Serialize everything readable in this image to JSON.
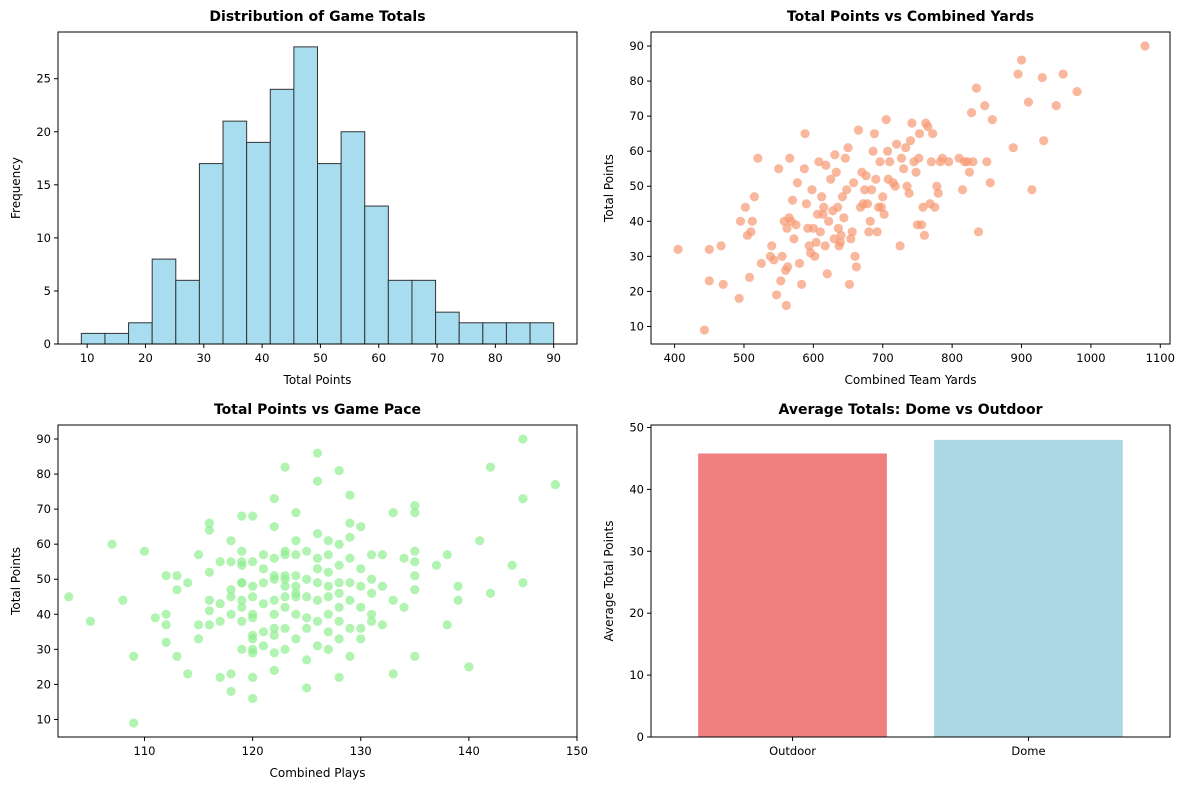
{
  "chart_data": [
    {
      "type": "bar",
      "subtype": "histogram",
      "title": "Distribution of Game Totals",
      "xlabel": "Total Points",
      "ylabel": "Frequency",
      "xlim": [
        5,
        94
      ],
      "ylim": [
        0,
        29.4
      ],
      "xticks": [
        10,
        20,
        30,
        40,
        50,
        60,
        70,
        80,
        90
      ],
      "yticks": [
        0,
        5,
        10,
        15,
        20,
        25
      ],
      "bin_edges": [
        9,
        13.05,
        17.1,
        21.15,
        25.2,
        29.25,
        33.3,
        37.35,
        41.4,
        45.45,
        49.5,
        53.55,
        57.6,
        61.65,
        65.7,
        69.75,
        73.8,
        77.85,
        81.9,
        85.95,
        90
      ],
      "values": [
        1,
        1,
        2,
        8,
        6,
        17,
        21,
        19,
        24,
        28,
        17,
        20,
        13,
        6,
        6,
        3,
        2,
        2,
        2,
        2
      ],
      "color": "#a8dcef",
      "edge_color": "#333333"
    },
    {
      "type": "scatter",
      "title": "Total Points vs Combined Yards",
      "xlabel": "Combined Team Yards",
      "ylabel": "Total Points",
      "xlim": [
        366,
        1114
      ],
      "ylim": [
        5,
        94
      ],
      "xticks": [
        400,
        500,
        600,
        700,
        800,
        900,
        1000,
        1100
      ],
      "yticks": [
        10,
        20,
        30,
        40,
        50,
        60,
        70,
        80,
        90
      ],
      "color": "#f79a74",
      "points": [
        [
          405,
          32
        ],
        [
          443,
          9
        ],
        [
          450,
          23
        ],
        [
          450,
          32
        ],
        [
          467,
          33
        ],
        [
          470,
          22
        ],
        [
          493,
          18
        ],
        [
          495,
          40
        ],
        [
          502,
          44
        ],
        [
          505,
          36
        ],
        [
          508,
          24
        ],
        [
          510,
          37
        ],
        [
          512,
          40
        ],
        [
          515,
          47
        ],
        [
          520,
          58
        ],
        [
          525,
          28
        ],
        [
          538,
          30
        ],
        [
          540,
          33
        ],
        [
          543,
          29
        ],
        [
          547,
          19
        ],
        [
          550,
          55
        ],
        [
          553,
          23
        ],
        [
          555,
          30
        ],
        [
          558,
          40
        ],
        [
          560,
          26
        ],
        [
          561,
          16
        ],
        [
          562,
          38
        ],
        [
          563,
          27
        ],
        [
          565,
          41
        ],
        [
          566,
          58
        ],
        [
          568,
          40
        ],
        [
          570,
          46
        ],
        [
          572,
          35
        ],
        [
          575,
          39
        ],
        [
          577,
          51
        ],
        [
          580,
          28
        ],
        [
          583,
          22
        ],
        [
          587,
          55
        ],
        [
          588,
          65
        ],
        [
          590,
          45
        ],
        [
          592,
          38
        ],
        [
          594,
          33
        ],
        [
          596,
          31
        ],
        [
          598,
          49
        ],
        [
          600,
          38
        ],
        [
          602,
          30
        ],
        [
          604,
          34
        ],
        [
          606,
          42
        ],
        [
          608,
          57
        ],
        [
          610,
          37
        ],
        [
          612,
          47
        ],
        [
          614,
          42
        ],
        [
          615,
          44
        ],
        [
          617,
          33
        ],
        [
          618,
          56
        ],
        [
          620,
          25
        ],
        [
          622,
          40
        ],
        [
          625,
          52
        ],
        [
          628,
          43
        ],
        [
          630,
          35
        ],
        [
          631,
          59
        ],
        [
          633,
          54
        ],
        [
          635,
          44
        ],
        [
          636,
          38
        ],
        [
          637,
          33
        ],
        [
          639,
          34
        ],
        [
          640,
          36
        ],
        [
          642,
          47
        ],
        [
          644,
          41
        ],
        [
          646,
          58
        ],
        [
          648,
          49
        ],
        [
          650,
          61
        ],
        [
          652,
          22
        ],
        [
          654,
          35
        ],
        [
          656,
          37
        ],
        [
          658,
          51
        ],
        [
          660,
          30
        ],
        [
          662,
          27
        ],
        [
          665,
          66
        ],
        [
          668,
          44
        ],
        [
          670,
          54
        ],
        [
          672,
          45
        ],
        [
          674,
          49
        ],
        [
          676,
          53
        ],
        [
          678,
          45
        ],
        [
          680,
          37
        ],
        [
          682,
          40
        ],
        [
          684,
          49
        ],
        [
          686,
          60
        ],
        [
          688,
          65
        ],
        [
          690,
          52
        ],
        [
          692,
          37
        ],
        [
          694,
          44
        ],
        [
          696,
          57
        ],
        [
          698,
          44
        ],
        [
          700,
          47
        ],
        [
          702,
          42
        ],
        [
          705,
          69
        ],
        [
          707,
          60
        ],
        [
          708,
          52
        ],
        [
          710,
          57
        ],
        [
          715,
          51
        ],
        [
          718,
          50
        ],
        [
          720,
          62
        ],
        [
          725,
          33
        ],
        [
          727,
          58
        ],
        [
          730,
          55
        ],
        [
          733,
          61
        ],
        [
          735,
          50
        ],
        [
          738,
          48
        ],
        [
          740,
          63
        ],
        [
          742,
          68
        ],
        [
          745,
          57
        ],
        [
          748,
          54
        ],
        [
          750,
          39
        ],
        [
          752,
          58
        ],
        [
          753,
          65
        ],
        [
          756,
          39
        ],
        [
          758,
          44
        ],
        [
          760,
          36
        ],
        [
          762,
          68
        ],
        [
          765,
          67
        ],
        [
          768,
          45
        ],
        [
          770,
          57
        ],
        [
          772,
          65
        ],
        [
          775,
          44
        ],
        [
          778,
          50
        ],
        [
          780,
          48
        ],
        [
          783,
          57
        ],
        [
          786,
          58
        ],
        [
          795,
          57
        ],
        [
          810,
          58
        ],
        [
          815,
          49
        ],
        [
          818,
          57
        ],
        [
          822,
          57
        ],
        [
          825,
          54
        ],
        [
          828,
          71
        ],
        [
          830,
          57
        ],
        [
          835,
          78
        ],
        [
          838,
          37
        ],
        [
          847,
          73
        ],
        [
          850,
          57
        ],
        [
          855,
          51
        ],
        [
          858,
          69
        ],
        [
          888,
          61
        ],
        [
          895,
          82
        ],
        [
          900,
          86
        ],
        [
          910,
          74
        ],
        [
          915,
          49
        ],
        [
          930,
          81
        ],
        [
          932,
          63
        ],
        [
          950,
          73
        ],
        [
          960,
          82
        ],
        [
          980,
          77
        ],
        [
          1078,
          90
        ]
      ]
    },
    {
      "type": "scatter",
      "title": "Total Points vs Game Pace",
      "xlabel": "Combined Plays",
      "ylabel": "Total Points",
      "xlim": [
        102,
        150
      ],
      "ylim": [
        5,
        94
      ],
      "xticks": [
        110,
        120,
        130,
        140,
        150
      ],
      "yticks": [
        10,
        20,
        30,
        40,
        50,
        60,
        70,
        80,
        90
      ],
      "color": "#90ee90",
      "points": [
        [
          103,
          45
        ],
        [
          105,
          38
        ],
        [
          107,
          60
        ],
        [
          108,
          44
        ],
        [
          109,
          9
        ],
        [
          109,
          28
        ],
        [
          110,
          58
        ],
        [
          111,
          39
        ],
        [
          112,
          32
        ],
        [
          112,
          37
        ],
        [
          112,
          40
        ],
        [
          112,
          51
        ],
        [
          113,
          28
        ],
        [
          113,
          47
        ],
        [
          113,
          51
        ],
        [
          114,
          23
        ],
        [
          114,
          49
        ],
        [
          115,
          57
        ],
        [
          115,
          33
        ],
        [
          115,
          37
        ],
        [
          116,
          37
        ],
        [
          116,
          41
        ],
        [
          116,
          44
        ],
        [
          116,
          52
        ],
        [
          116,
          64
        ],
        [
          116,
          66
        ],
        [
          117,
          22
        ],
        [
          117,
          38
        ],
        [
          117,
          43
        ],
        [
          117,
          55
        ],
        [
          118,
          18
        ],
        [
          118,
          23
        ],
        [
          118,
          40
        ],
        [
          118,
          45
        ],
        [
          118,
          47
        ],
        [
          118,
          55
        ],
        [
          118,
          61
        ],
        [
          119,
          30
        ],
        [
          119,
          38
        ],
        [
          119,
          42
        ],
        [
          119,
          44
        ],
        [
          119,
          49
        ],
        [
          119,
          49
        ],
        [
          119,
          54
        ],
        [
          119,
          55
        ],
        [
          119,
          58
        ],
        [
          119,
          68
        ],
        [
          120,
          16
        ],
        [
          120,
          22
        ],
        [
          120,
          29
        ],
        [
          120,
          30
        ],
        [
          120,
          33
        ],
        [
          120,
          34
        ],
        [
          120,
          39
        ],
        [
          120,
          40
        ],
        [
          120,
          45
        ],
        [
          120,
          48
        ],
        [
          120,
          55
        ],
        [
          120,
          68
        ],
        [
          121,
          31
        ],
        [
          121,
          35
        ],
        [
          121,
          43
        ],
        [
          121,
          49
        ],
        [
          121,
          53
        ],
        [
          121,
          57
        ],
        [
          122,
          24
        ],
        [
          122,
          29
        ],
        [
          122,
          34
        ],
        [
          122,
          36
        ],
        [
          122,
          40
        ],
        [
          122,
          44
        ],
        [
          122,
          50
        ],
        [
          122,
          51
        ],
        [
          122,
          56
        ],
        [
          122,
          65
        ],
        [
          122,
          73
        ],
        [
          123,
          30
        ],
        [
          123,
          36
        ],
        [
          123,
          42
        ],
        [
          123,
          45
        ],
        [
          123,
          48
        ],
        [
          123,
          50
        ],
        [
          123,
          51
        ],
        [
          123,
          57
        ],
        [
          123,
          58
        ],
        [
          123,
          82
        ],
        [
          124,
          33
        ],
        [
          124,
          40
        ],
        [
          124,
          45
        ],
        [
          124,
          46
        ],
        [
          124,
          48
        ],
        [
          124,
          51
        ],
        [
          124,
          57
        ],
        [
          124,
          61
        ],
        [
          124,
          69
        ],
        [
          125,
          19
        ],
        [
          125,
          27
        ],
        [
          125,
          36
        ],
        [
          125,
          39
        ],
        [
          125,
          45
        ],
        [
          125,
          50
        ],
        [
          125,
          58
        ],
        [
          126,
          31
        ],
        [
          126,
          38
        ],
        [
          126,
          44
        ],
        [
          126,
          49
        ],
        [
          126,
          53
        ],
        [
          126,
          56
        ],
        [
          126,
          63
        ],
        [
          126,
          78
        ],
        [
          126,
          86
        ],
        [
          127,
          30
        ],
        [
          127,
          35
        ],
        [
          127,
          40
        ],
        [
          127,
          45
        ],
        [
          127,
          48
        ],
        [
          127,
          52
        ],
        [
          127,
          57
        ],
        [
          127,
          61
        ],
        [
          128,
          22
        ],
        [
          128,
          33
        ],
        [
          128,
          38
        ],
        [
          128,
          42
        ],
        [
          128,
          46
        ],
        [
          128,
          49
        ],
        [
          128,
          54
        ],
        [
          128,
          60
        ],
        [
          128,
          81
        ],
        [
          129,
          28
        ],
        [
          129,
          36
        ],
        [
          129,
          44
        ],
        [
          129,
          49
        ],
        [
          129,
          56
        ],
        [
          129,
          62
        ],
        [
          129,
          66
        ],
        [
          129,
          74
        ],
        [
          130,
          33
        ],
        [
          130,
          36
        ],
        [
          130,
          42
        ],
        [
          130,
          48
        ],
        [
          130,
          53
        ],
        [
          130,
          65
        ],
        [
          131,
          38
        ],
        [
          131,
          40
        ],
        [
          131,
          46
        ],
        [
          131,
          50
        ],
        [
          131,
          57
        ],
        [
          132,
          37
        ],
        [
          132,
          48
        ],
        [
          132,
          57
        ],
        [
          133,
          23
        ],
        [
          133,
          44
        ],
        [
          133,
          69
        ],
        [
          134,
          42
        ],
        [
          134,
          56
        ],
        [
          135,
          28
        ],
        [
          135,
          47
        ],
        [
          135,
          51
        ],
        [
          135,
          55
        ],
        [
          135,
          58
        ],
        [
          135,
          69
        ],
        [
          135,
          71
        ],
        [
          137,
          54
        ],
        [
          138,
          37
        ],
        [
          138,
          57
        ],
        [
          139,
          44
        ],
        [
          139,
          48
        ],
        [
          140,
          25
        ],
        [
          141,
          61
        ],
        [
          142,
          46
        ],
        [
          142,
          82
        ],
        [
          144,
          54
        ],
        [
          145,
          49
        ],
        [
          145,
          73
        ],
        [
          145,
          90
        ],
        [
          148,
          77
        ]
      ]
    },
    {
      "type": "bar",
      "title": "Average Totals: Dome vs Outdoor",
      "xlabel": "",
      "ylabel": "Average Total Points",
      "categories": [
        "Outdoor",
        "Dome"
      ],
      "values": [
        45.8,
        48.0
      ],
      "colors": [
        "#f08080",
        "#add8e6"
      ],
      "ylim": [
        0,
        50.4
      ],
      "yticks": [
        0,
        10,
        20,
        30,
        40,
        50
      ]
    }
  ]
}
